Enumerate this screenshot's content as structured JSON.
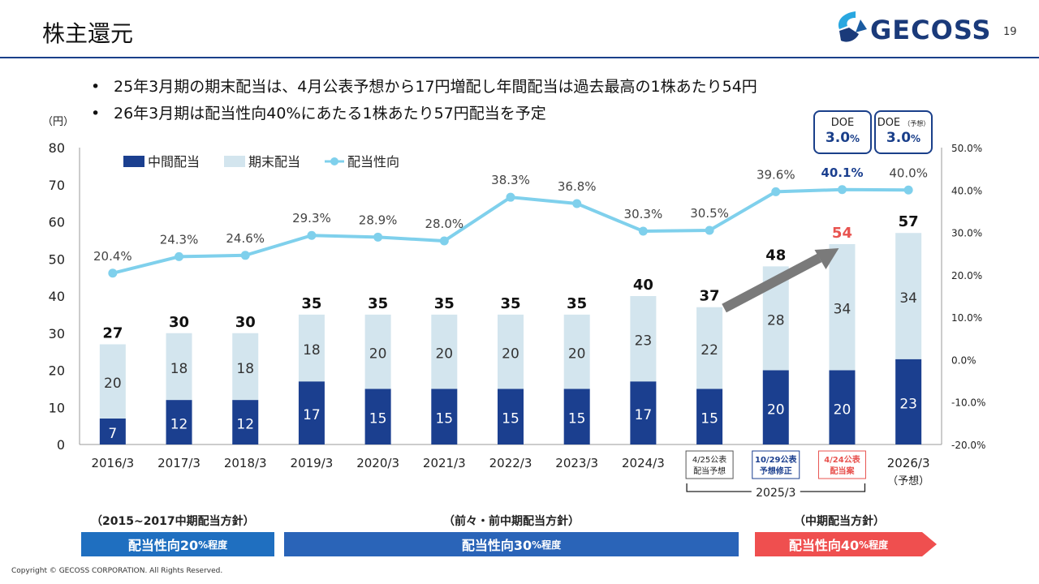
{
  "header": {
    "title": "株主還元",
    "page_number": "19",
    "logo_text": "GECOSS"
  },
  "bullets": [
    "25年3月期の期末配当は、4月公表予想から17円増配し年間配当は過去最高の1株あたり54円",
    "26年3月期は配当性向40%にあたる1株あたり57円配当を予定"
  ],
  "bullet_symbol": "•",
  "doe": [
    {
      "label": "DOE",
      "label_suffix": "",
      "value": "3.0",
      "unit": "%"
    },
    {
      "label": "DOE",
      "label_suffix": "（予想）",
      "value": "3.0",
      "unit": "%"
    }
  ],
  "chart_data": {
    "type": "bar",
    "stacked": true,
    "y_unit_label": "（円）",
    "ylim": [
      0,
      80
    ],
    "yticks": [
      0,
      10,
      20,
      30,
      40,
      50,
      60,
      70,
      80
    ],
    "y2lim": [
      -20,
      50
    ],
    "y2ticks": [
      "-20.0%",
      "-10.0%",
      "0.0%",
      "10.0%",
      "20.0%",
      "30.0%",
      "40.0%",
      "50.0%"
    ],
    "categories": [
      "2016/3",
      "2017/3",
      "2018/3",
      "2019/3",
      "2020/3",
      "2021/3",
      "2022/3",
      "2023/3",
      "2024/3",
      "4/25公表\n配当予想",
      "10/29公表\n予想修正",
      "4/24公表\n配当案",
      "2026/3"
    ],
    "category_sub": [
      "",
      "",
      "",
      "",
      "",
      "",
      "",
      "",
      "",
      "",
      "",
      "",
      "（予想）"
    ],
    "group_label": "2025/3",
    "series": [
      {
        "name": "中間配当",
        "color": "#1b3f8f",
        "values": [
          7,
          12,
          12,
          17,
          15,
          15,
          15,
          15,
          17,
          15,
          20,
          20,
          23
        ]
      },
      {
        "name": "期末配当",
        "color": "#d3e5ee",
        "values": [
          20,
          18,
          18,
          18,
          20,
          20,
          20,
          20,
          23,
          22,
          28,
          34,
          34
        ]
      }
    ],
    "totals": [
      27,
      30,
      30,
      35,
      35,
      35,
      35,
      35,
      40,
      37,
      48,
      54,
      57
    ],
    "line": {
      "name": "配当性向",
      "color": "#7fd0ec",
      "values": [
        20.4,
        24.3,
        24.6,
        29.3,
        28.9,
        28.0,
        38.3,
        36.8,
        30.3,
        30.5,
        39.6,
        40.1,
        40.0
      ],
      "labels": [
        "20.4%",
        "24.3%",
        "24.6%",
        "29.3%",
        "28.9%",
        "28.0%",
        "38.3%",
        "36.8%",
        "30.3%",
        "30.5%",
        "39.6%",
        "40.1%",
        "40.0%"
      ]
    },
    "highlight_total_color": "#e8534f",
    "highlight_total_index": 11,
    "legend_position": "top-left",
    "grid": false
  },
  "policies": [
    {
      "head": "（2015~2017中期配当方針）",
      "label": "配当性向20",
      "suffix": "%程度",
      "color": "#1f6fc0"
    },
    {
      "head": "（前々・前中期配当方針）",
      "label": "配当性向30",
      "suffix": "%程度",
      "color": "#2a64b8"
    },
    {
      "head": "（中期配当方針）",
      "label": "配当性向40",
      "suffix": "%程度",
      "color": "#ef4f4f"
    }
  ],
  "footer": {
    "copyright": "Copyright © GECOSS CORPORATION. All Rights Reserved."
  }
}
